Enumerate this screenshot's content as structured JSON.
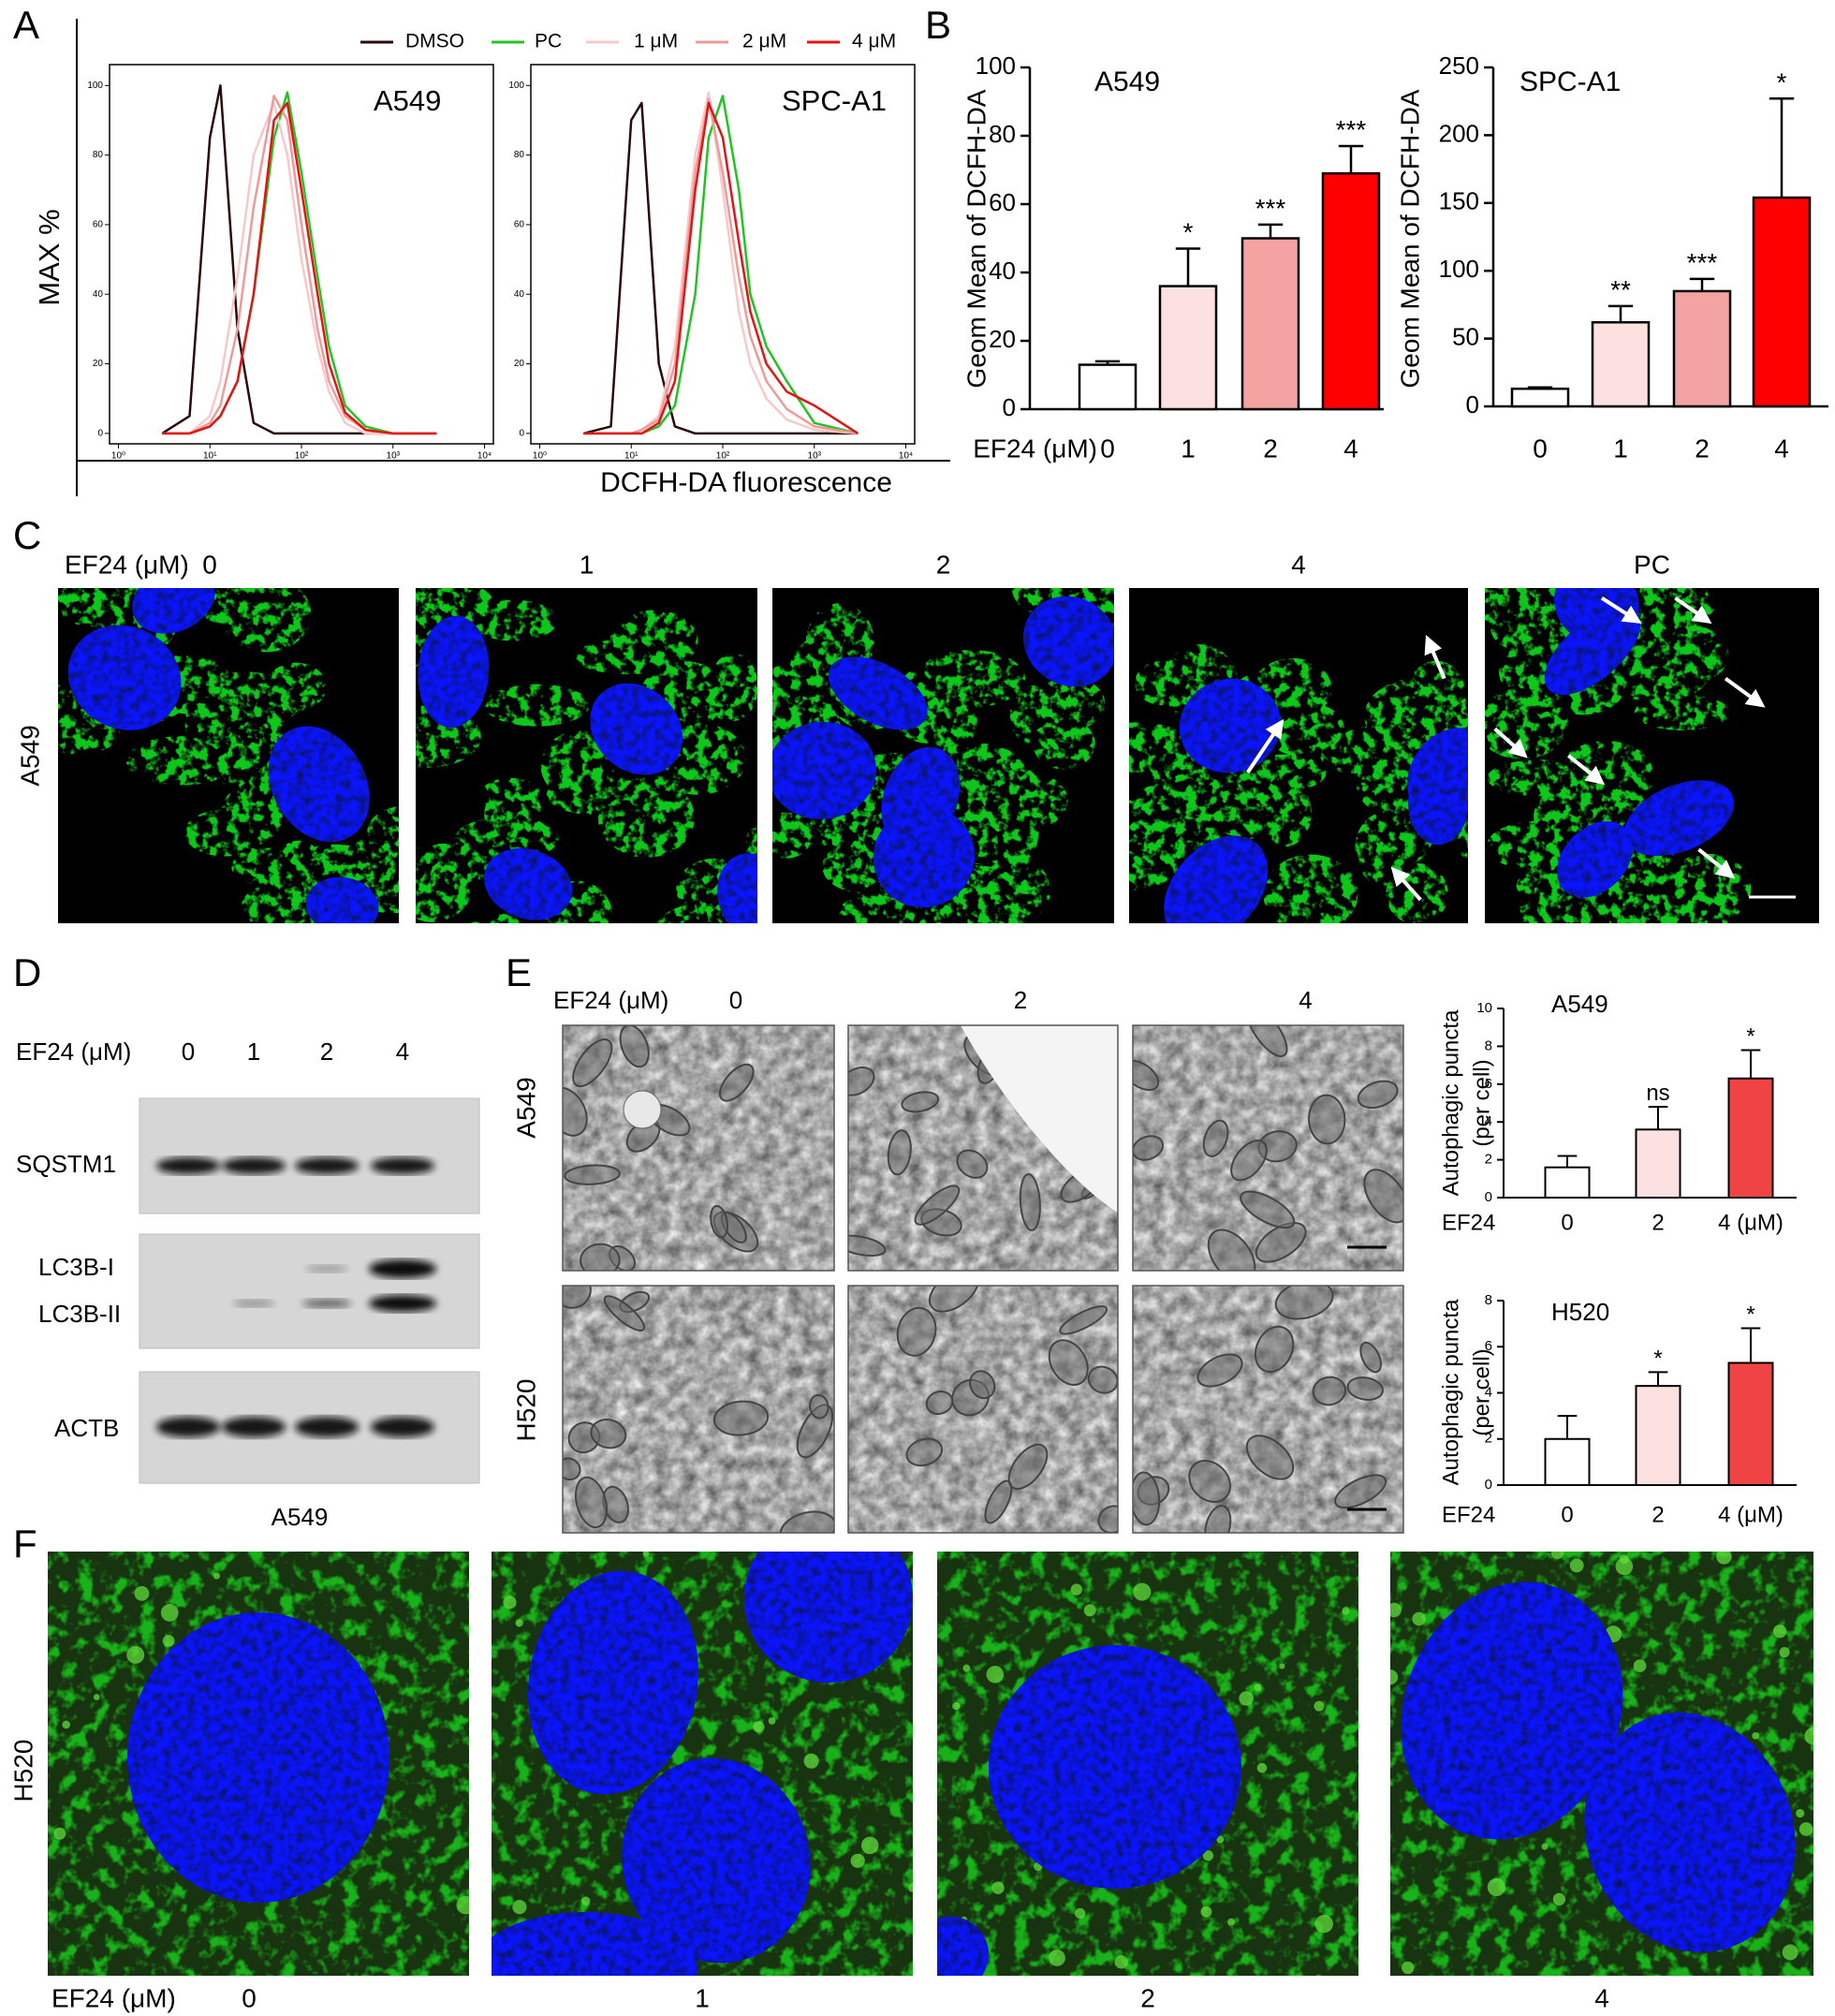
{
  "panel_letters": [
    "A",
    "B",
    "C",
    "D",
    "E",
    "F"
  ],
  "chart_data": [
    {
      "type": "line",
      "title": "A549",
      "y_label": "MAX %",
      "x_label": "DCFH-DA fluorescence",
      "xscale": "log",
      "xlim": [
        0.8,
        12500
      ],
      "ylim": [
        -3,
        106
      ],
      "xticks": [
        {
          "value": 1,
          "label": "10⁰"
        },
        {
          "value": 10,
          "label": "10¹"
        },
        {
          "value": 100,
          "label": "10²"
        },
        {
          "value": 1000,
          "label": "10³"
        },
        {
          "value": 10000,
          "label": "10⁴"
        }
      ],
      "yticks": [
        0,
        20,
        40,
        60,
        80,
        100
      ],
      "x": [
        3,
        6,
        10,
        13,
        20,
        30,
        50,
        70,
        100,
        150,
        200,
        300,
        500,
        1000,
        3000
      ],
      "series": [
        {
          "name": "DMSO",
          "color": "#2b0a0a",
          "values": [
            0,
            5,
            85,
            100,
            30,
            3,
            0,
            0,
            0,
            0,
            0,
            0,
            0,
            0,
            0
          ]
        },
        {
          "name": "PC",
          "color": "#22c422",
          "values": [
            0,
            0,
            2,
            5,
            15,
            40,
            85,
            98,
            75,
            45,
            25,
            8,
            2,
            0,
            0
          ]
        },
        {
          "name": "1 μM",
          "color": "#f7c9c9",
          "values": [
            0,
            0,
            5,
            15,
            45,
            80,
            95,
            80,
            50,
            25,
            12,
            3,
            0,
            0,
            0
          ]
        },
        {
          "name": "2 μM",
          "color": "#ef9a9a",
          "values": [
            0,
            0,
            3,
            8,
            30,
            65,
            97,
            90,
            60,
            30,
            15,
            5,
            1,
            0,
            0
          ]
        },
        {
          "name": "4 μM",
          "color": "#e51414",
          "values": [
            0,
            0,
            2,
            5,
            15,
            40,
            90,
            95,
            70,
            40,
            20,
            6,
            1,
            0,
            0
          ]
        }
      ]
    },
    {
      "type": "line",
      "title": "SPC-A1",
      "xscale": "log",
      "xlim": [
        0.8,
        12500
      ],
      "ylim": [
        -3,
        106
      ],
      "xticks": [
        {
          "value": 1,
          "label": "10⁰"
        },
        {
          "value": 10,
          "label": "10¹"
        },
        {
          "value": 100,
          "label": "10²"
        },
        {
          "value": 1000,
          "label": "10³"
        },
        {
          "value": 10000,
          "label": "10⁴"
        }
      ],
      "yticks": [
        0,
        20,
        40,
        60,
        80,
        100
      ],
      "x": [
        3,
        6,
        10,
        13,
        20,
        30,
        50,
        70,
        100,
        150,
        200,
        300,
        500,
        1000,
        3000
      ],
      "series": [
        {
          "name": "DMSO",
          "color": "#2b0a0a",
          "values": [
            0,
            2,
            90,
            95,
            20,
            2,
            0,
            0,
            0,
            0,
            0,
            0,
            0,
            0,
            0
          ]
        },
        {
          "name": "PC",
          "color": "#22c422",
          "values": [
            0,
            0,
            0,
            0,
            2,
            8,
            40,
            85,
            97,
            70,
            40,
            25,
            15,
            3,
            0
          ]
        },
        {
          "name": "1 μM",
          "color": "#f7c9c9",
          "values": [
            0,
            0,
            0,
            1,
            5,
            25,
            80,
            98,
            70,
            35,
            20,
            10,
            4,
            1,
            0
          ]
        },
        {
          "name": "2 μM",
          "color": "#ef9a9a",
          "values": [
            0,
            0,
            0,
            1,
            4,
            20,
            75,
            96,
            75,
            45,
            28,
            15,
            7,
            2,
            0
          ]
        },
        {
          "name": "4 μM",
          "color": "#e51414",
          "values": [
            0,
            0,
            0,
            0,
            3,
            15,
            70,
            95,
            85,
            55,
            35,
            20,
            12,
            8,
            0
          ]
        }
      ]
    },
    {
      "type": "bar",
      "title": "A549",
      "y_label": "Geom Mean of DCFH-DA",
      "x_label": "EF24 (μM)",
      "categories": [
        "0",
        "1",
        "2",
        "4"
      ],
      "values": [
        13,
        36,
        50,
        69
      ],
      "errors": [
        1,
        11,
        4,
        8
      ],
      "annotations": [
        null,
        "*",
        "***",
        "***"
      ],
      "colors": [
        "#ffffff",
        "#fde0e0",
        "#f4a3a3",
        "#ff0000"
      ],
      "ylim": [
        0,
        100
      ],
      "yticks": [
        0,
        20,
        40,
        60,
        80,
        100
      ]
    },
    {
      "type": "bar",
      "title": "SPC-A1",
      "y_label": "Geom Mean of DCFH-DA",
      "categories": [
        "0",
        "1",
        "2",
        "4"
      ],
      "values": [
        13,
        62,
        85,
        154
      ],
      "errors": [
        1,
        12,
        9,
        73
      ],
      "annotations": [
        null,
        "**",
        "***",
        "*"
      ],
      "colors": [
        "#ffffff",
        "#fde0e0",
        "#f4a3a3",
        "#ff0000"
      ],
      "ylim": [
        0,
        250
      ],
      "yticks": [
        0,
        50,
        100,
        150,
        200,
        250
      ]
    },
    {
      "type": "bar",
      "title": "A549",
      "y_label": [
        "Autophagic puncta",
        "(per cell)"
      ],
      "x_label": "EF24",
      "categories": [
        "0",
        "2",
        "4 (μM)"
      ],
      "values": [
        1.6,
        3.6,
        6.3
      ],
      "errors": [
        0.6,
        1.2,
        1.5
      ],
      "annotations": [
        null,
        "ns",
        "*"
      ],
      "colors": [
        "#ffffff",
        "#fde0e0",
        "#f04444"
      ],
      "ylim": [
        0,
        10
      ],
      "yticks": [
        0,
        2,
        4,
        6,
        8,
        10
      ]
    },
    {
      "type": "bar",
      "title": "H520",
      "y_label": [
        "Autophagic puncta",
        "(per cell)"
      ],
      "x_label": "EF24",
      "categories": [
        "0",
        "2",
        "4 (μM)"
      ],
      "values": [
        2.0,
        4.3,
        5.3
      ],
      "errors": [
        1.0,
        0.6,
        1.5
      ],
      "annotations": [
        null,
        "*",
        "*"
      ],
      "colors": [
        "#ffffff",
        "#fde0e0",
        "#f04444"
      ],
      "ylim": [
        0,
        8
      ],
      "yticks": [
        0,
        2,
        4,
        6,
        8
      ]
    }
  ],
  "panel_c": {
    "header": "EF24 (μM)",
    "columns": [
      "0",
      "1",
      "2",
      "4",
      "PC"
    ],
    "row_label": "A549"
  },
  "panel_d": {
    "header": "EF24 (μM)",
    "lanes": [
      "0",
      "1",
      "2",
      "4"
    ],
    "rows": [
      "SQSTM1",
      "LC3B-I",
      "LC3B-II",
      "ACTB"
    ],
    "footer": "A549"
  },
  "panel_e": {
    "header": "EF24 (μM)",
    "columns": [
      "0",
      "2",
      "4"
    ],
    "rows": [
      "A549",
      "H520"
    ]
  },
  "panel_f": {
    "header": "EF24 (μM)",
    "columns": [
      "0",
      "1",
      "2",
      "4"
    ],
    "row_label": "H520"
  }
}
